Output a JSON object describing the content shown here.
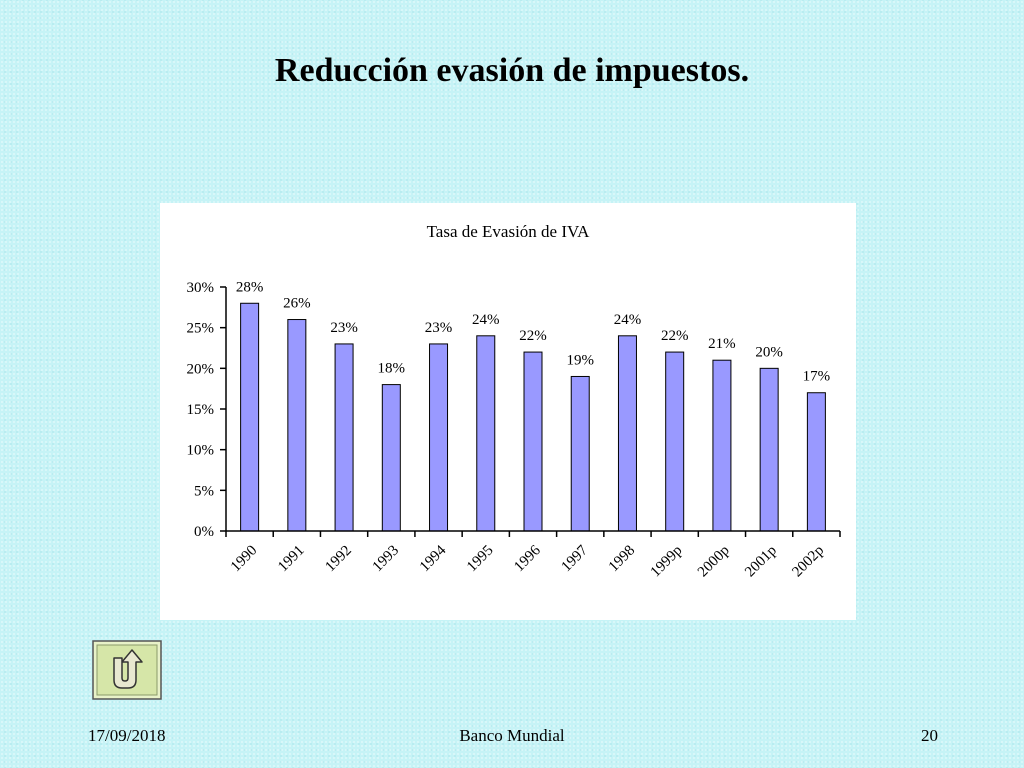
{
  "slide": {
    "title": "Reducción evasión de impuestos."
  },
  "footer": {
    "date": "17/09/2018",
    "center": "Banco Mundial",
    "page": "20"
  },
  "nav": {
    "icon": "return-arrow-icon"
  },
  "colors": {
    "background": "#c6f3f6",
    "bar": "#9999ff",
    "nav_button": "#d6e6a8"
  },
  "chart_data": {
    "type": "bar",
    "title": "Tasa de Evasión de IVA",
    "xlabel": "",
    "ylabel": "",
    "categories": [
      "1990",
      "1991",
      "1992",
      "1993",
      "1994",
      "1995",
      "1996",
      "1997",
      "1998",
      "1999p",
      "2000p",
      "2001p",
      "2002p"
    ],
    "values": [
      28,
      26,
      23,
      18,
      23,
      24,
      22,
      19,
      24,
      22,
      21,
      20,
      17
    ],
    "data_labels": [
      "28%",
      "26%",
      "23%",
      "18%",
      "23%",
      "24%",
      "22%",
      "19%",
      "24%",
      "22%",
      "21%",
      "20%",
      "17%"
    ],
    "ylim": [
      0,
      30
    ],
    "yticks": [
      0,
      5,
      10,
      15,
      20,
      25,
      30
    ],
    "ytick_labels": [
      "0%",
      "5%",
      "10%",
      "15%",
      "20%",
      "25%",
      "30%"
    ],
    "grid": false,
    "legend": "none"
  }
}
